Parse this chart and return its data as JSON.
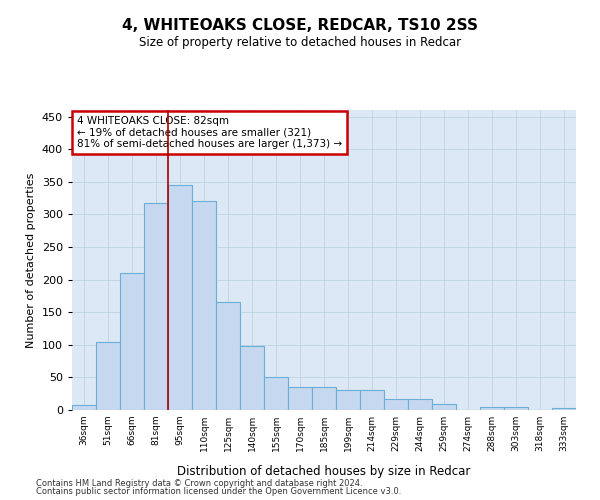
{
  "title": "4, WHITEOAKS CLOSE, REDCAR, TS10 2SS",
  "subtitle": "Size of property relative to detached houses in Redcar",
  "xlabel": "Distribution of detached houses by size in Redcar",
  "ylabel": "Number of detached properties",
  "categories": [
    "36sqm",
    "51sqm",
    "66sqm",
    "81sqm",
    "95sqm",
    "110sqm",
    "125sqm",
    "140sqm",
    "155sqm",
    "170sqm",
    "185sqm",
    "199sqm",
    "214sqm",
    "229sqm",
    "244sqm",
    "259sqm",
    "274sqm",
    "288sqm",
    "303sqm",
    "318sqm",
    "333sqm"
  ],
  "values": [
    7,
    105,
    210,
    317,
    345,
    320,
    165,
    98,
    50,
    35,
    35,
    30,
    30,
    17,
    17,
    9,
    0,
    5,
    5,
    0,
    3
  ],
  "bar_color": "#c5d8f0",
  "bar_edge_color": "#6baed6",
  "vline_x_index": 3.5,
  "vline_color": "#aa0000",
  "annotation_box_text": "4 WHITEOAKS CLOSE: 82sqm\n← 19% of detached houses are smaller (321)\n81% of semi-detached houses are larger (1,373) →",
  "annotation_box_color": "#ffffff",
  "annotation_box_edge_color": "#cc0000",
  "ylim": [
    0,
    460
  ],
  "yticks": [
    0,
    50,
    100,
    150,
    200,
    250,
    300,
    350,
    400,
    450
  ],
  "background_color": "#ffffff",
  "plot_bg_color": "#dce8f5",
  "grid_color": "#b8cfe0",
  "footer_line1": "Contains HM Land Registry data © Crown copyright and database right 2024.",
  "footer_line2": "Contains public sector information licensed under the Open Government Licence v3.0."
}
